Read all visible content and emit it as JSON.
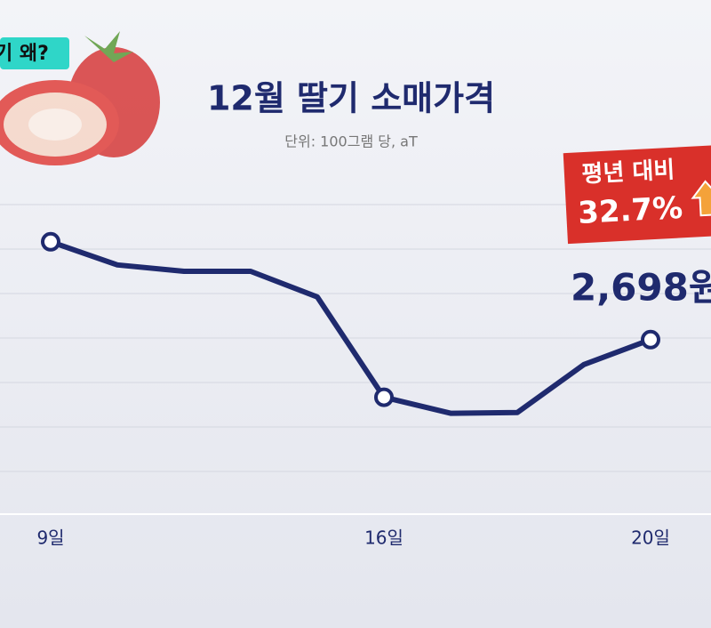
{
  "tag": "기 왜?",
  "chart_data": {
    "type": "line",
    "title": "12월 딸기 소매가격",
    "subtitle": "단위: 100그램 당, aT",
    "categories": [
      "9일",
      null,
      null,
      null,
      null,
      "16일",
      null,
      null,
      null,
      "20일"
    ],
    "series": [
      {
        "name": "딸기 소매가격",
        "color": "#1f2a6e",
        "values": [
          2973,
          2908,
          2890,
          2890,
          2818,
          2536,
          2491,
          2493,
          2628,
          2698
        ],
        "value_labels": [
          null,
          null,
          null,
          null,
          null,
          null,
          null,
          null,
          null,
          "2,698원"
        ]
      }
    ],
    "ylim": [
      2200,
      3100
    ],
    "annotation": {
      "text": "평년 대비",
      "value_text": "32.7%"
    }
  }
}
